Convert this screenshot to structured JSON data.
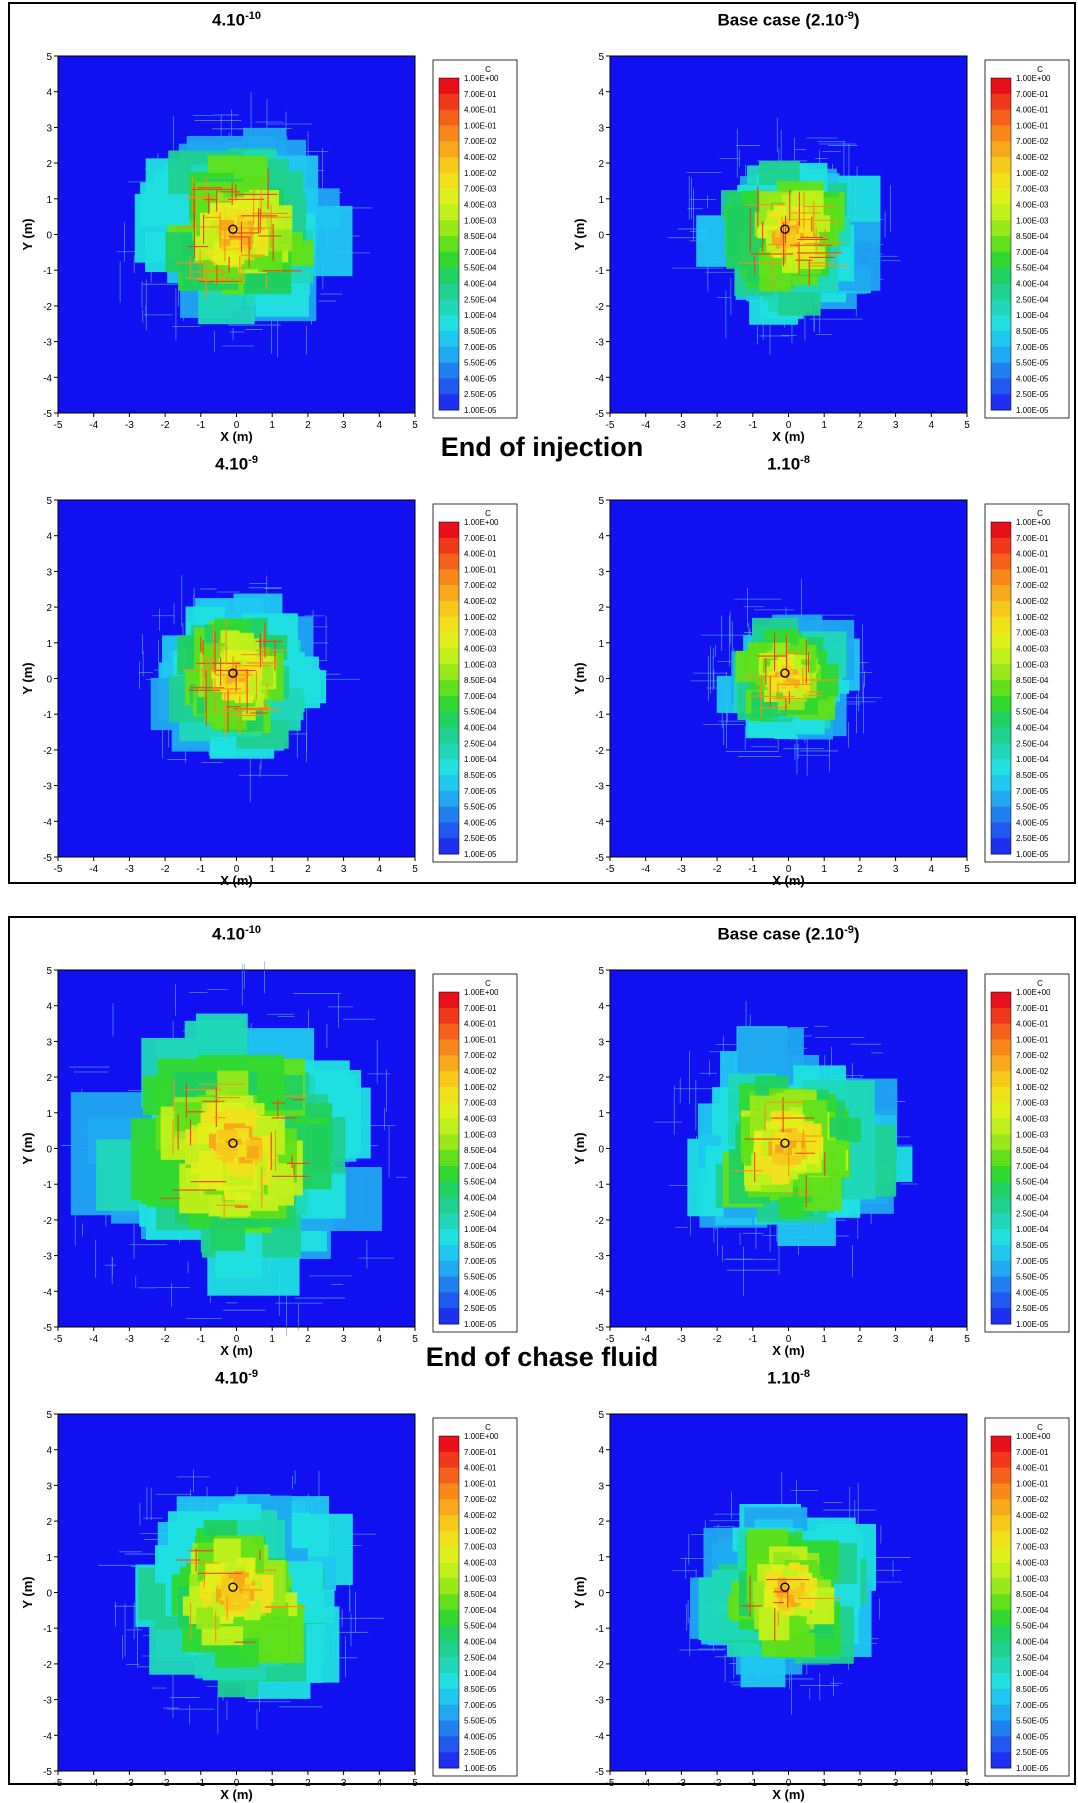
{
  "sections": [
    {
      "title": "End of injection",
      "panels": [
        {
          "title_base": "4.10",
          "title_sup": "-10",
          "title_tail": ""
        },
        {
          "title_base": "Base case (2.10",
          "title_sup": "-9",
          "title_tail": ")"
        },
        {
          "title_base": "4.10",
          "title_sup": "-9",
          "title_tail": ""
        },
        {
          "title_base": "1.10",
          "title_sup": "-8",
          "title_tail": ""
        }
      ]
    },
    {
      "title": "End of chase fluid",
      "panels": [
        {
          "title_base": "4.10",
          "title_sup": "-10",
          "title_tail": ""
        },
        {
          "title_base": "Base case (2.10",
          "title_sup": "-9",
          "title_tail": ")"
        },
        {
          "title_base": "4.10",
          "title_sup": "-9",
          "title_tail": ""
        },
        {
          "title_base": "1.10",
          "title_sup": "-8",
          "title_tail": ""
        }
      ]
    }
  ],
  "chart_data": {
    "type": "heatmap",
    "xlabel": "X (m)",
    "ylabel": "Y (m)",
    "xlim": [
      -5,
      5
    ],
    "ylim": [
      -5,
      5
    ],
    "x_ticks": [
      "-5",
      "-4",
      "-3",
      "-2",
      "-1",
      "0",
      "1",
      "2",
      "3",
      "4",
      "5"
    ],
    "y_ticks": [
      "5",
      "4",
      "3",
      "2",
      "1",
      "0",
      "-1",
      "-2",
      "-3",
      "-4",
      "-5"
    ],
    "colorbar_title": "C",
    "colorbar_levels": [
      "1.00E+00",
      "7.00E-01",
      "4.00E-01",
      "1.00E-01",
      "7.00E-02",
      "4.00E-02",
      "1.00E-02",
      "7.00E-03",
      "4.00E-03",
      "1.00E-03",
      "8.50E-04",
      "7.00E-04",
      "5.50E-04",
      "4.00E-04",
      "2.50E-04",
      "1.00E-04",
      "8.50E-05",
      "7.00E-05",
      "5.50E-05",
      "4.00E-05",
      "2.50E-05",
      "1.00E-05"
    ],
    "colorbar_colors": [
      "#e8101a",
      "#f0381a",
      "#f5601a",
      "#f8881a",
      "#f8a81a",
      "#f5c81a",
      "#f0e01a",
      "#e0f01a",
      "#c0f01a",
      "#98e81a",
      "#60e01a",
      "#30d830",
      "#20d060",
      "#20d090",
      "#20d8b8",
      "#20e0e0",
      "#20c8f0",
      "#20a8f0",
      "#2080f0",
      "#2058f0",
      "#2030f0",
      "#1010f0"
    ],
    "background_color": "#1010f0",
    "well_position": [
      -0.1,
      0.15
    ],
    "plume_extent_m": [
      [
        3.0,
        2.5,
        2.4,
        2.0
      ],
      [
        4.2,
        3.1,
        3.1,
        2.6
      ]
    ]
  }
}
